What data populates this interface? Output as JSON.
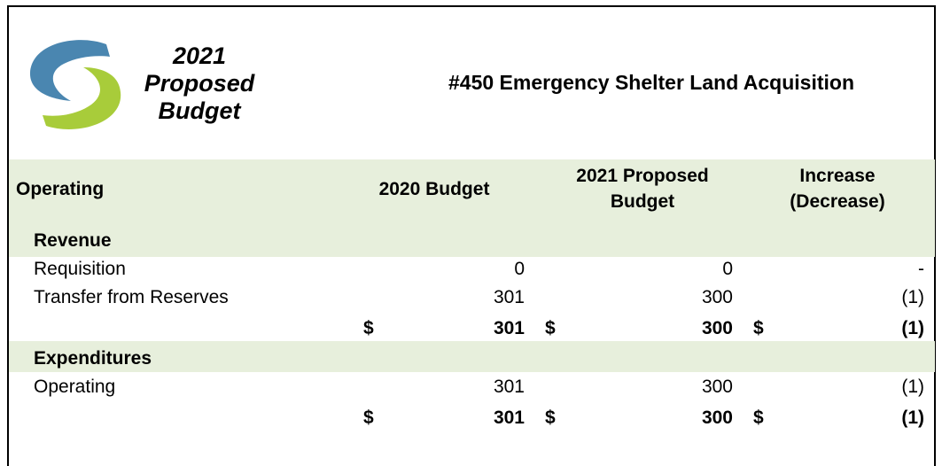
{
  "logo": {
    "lines": [
      "2021",
      "Proposed",
      "Budget"
    ]
  },
  "title": "#450 Emergency Shelter Land Acquisition",
  "table": {
    "columns": [
      "Operating",
      "2020 Budget",
      "2021 Proposed Budget",
      "Increase (Decrease)"
    ],
    "sections": [
      {
        "name": "Revenue",
        "rows": [
          {
            "label": "Requisition",
            "values": [
              "0",
              "0",
              "-"
            ]
          },
          {
            "label": "Transfer from Reserves",
            "values": [
              "301",
              "300",
              "(1)"
            ]
          }
        ],
        "total": {
          "currency": "$",
          "values": [
            "301",
            "300",
            "(1)"
          ]
        }
      },
      {
        "name": "Expenditures",
        "rows": [
          {
            "label": "Operating",
            "values": [
              "301",
              "300",
              "(1)"
            ]
          }
        ],
        "total": {
          "currency": "$",
          "values": [
            "301",
            "300",
            "(1)"
          ]
        }
      }
    ]
  }
}
